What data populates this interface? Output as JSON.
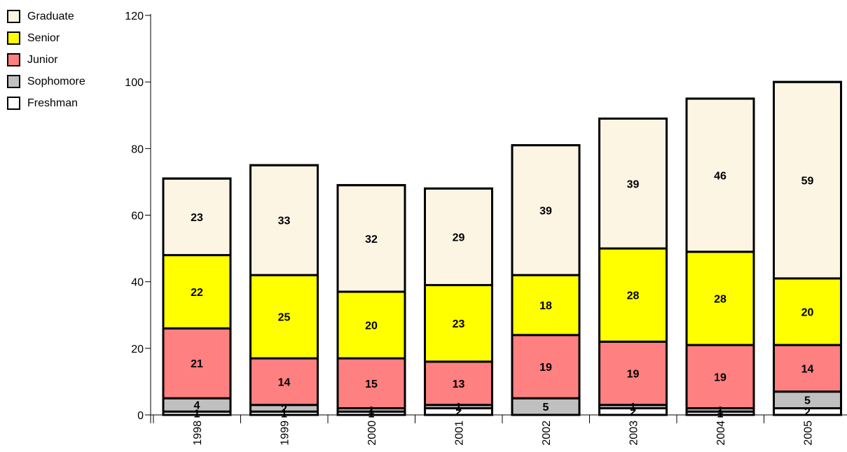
{
  "chart_data": {
    "type": "bar",
    "stacked": true,
    "categories": [
      "1998",
      "1999",
      "2000",
      "2001",
      "2002",
      "2003",
      "2004",
      "2005"
    ],
    "series": [
      {
        "name": "Freshman",
        "color": "#ffffff",
        "values": [
          1,
          1,
          1,
          2,
          0,
          2,
          1,
          2
        ]
      },
      {
        "name": "Sophomore",
        "color": "#c0c0c0",
        "values": [
          4,
          2,
          1,
          1,
          5,
          1,
          1,
          5
        ]
      },
      {
        "name": "Junior",
        "color": "#ff8080",
        "values": [
          21,
          14,
          15,
          13,
          19,
          19,
          19,
          14
        ]
      },
      {
        "name": "Senior",
        "color": "#ffff00",
        "values": [
          22,
          25,
          20,
          23,
          18,
          28,
          28,
          20
        ]
      },
      {
        "name": "Graduate",
        "color": "#fdf5e4",
        "values": [
          23,
          33,
          32,
          29,
          39,
          39,
          46,
          59
        ]
      }
    ],
    "yticks": [
      "0",
      "20",
      "40",
      "60",
      "80",
      "100",
      "120"
    ],
    "ylim": [
      0,
      120
    ],
    "title": "",
    "xlabel": "",
    "ylabel": "",
    "legend": "top-left",
    "grid": false
  }
}
